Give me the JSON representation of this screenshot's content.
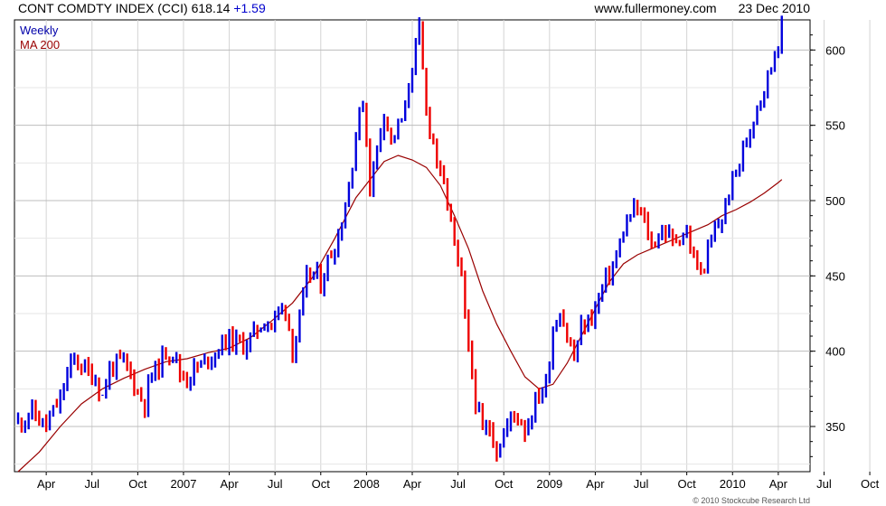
{
  "header": {
    "index_title": "CONT COMDTY INDEX (CCI)",
    "last_value": "618.14",
    "change": "+1.59",
    "website": "www.fullermoney.com",
    "date": "23 Dec 2010"
  },
  "footer": {
    "copyright": "© 2010 Stockcube Research Ltd"
  },
  "colors": {
    "up": "#0000dd",
    "down": "#ee0000",
    "ma": "#990000",
    "grid": "#d4d4d4"
  },
  "chart_data": {
    "type": "line",
    "title": "CONT COMDTY INDEX (CCI)",
    "legend": [
      {
        "name": "Weekly",
        "color": "#0000aa"
      },
      {
        "name": "MA 200",
        "color": "#990000"
      }
    ],
    "legend_position": "top-left",
    "grid": true,
    "ylim": [
      320,
      620
    ],
    "y_ticks": [
      350,
      400,
      450,
      500,
      550,
      600
    ],
    "y_axis_side": "right",
    "x_tick_labels": [
      "Apr",
      "Jul",
      "Oct",
      "2007",
      "Apr",
      "Jul",
      "Oct",
      "2008",
      "Apr",
      "Jul",
      "Oct",
      "2009",
      "Apr",
      "Jul",
      "Oct",
      "2010",
      "Apr",
      "Jul",
      "Oct"
    ],
    "weekly_close": [
      [
        0,
        353
      ],
      [
        2,
        356
      ],
      [
        4,
        360
      ],
      [
        6,
        354
      ],
      [
        8,
        350
      ],
      [
        10,
        360
      ],
      [
        12,
        368
      ],
      [
        14,
        385
      ],
      [
        16,
        395
      ],
      [
        18,
        390
      ],
      [
        20,
        386
      ],
      [
        22,
        382
      ],
      [
        24,
        370
      ],
      [
        26,
        388
      ],
      [
        28,
        392
      ],
      [
        30,
        392
      ],
      [
        32,
        385
      ],
      [
        34,
        372
      ],
      [
        36,
        366
      ],
      [
        38,
        385
      ],
      [
        40,
        390
      ],
      [
        42,
        400
      ],
      [
        44,
        400
      ],
      [
        46,
        385
      ],
      [
        48,
        382
      ],
      [
        50,
        388
      ],
      [
        52,
        390
      ],
      [
        54,
        396
      ],
      [
        56,
        399
      ],
      [
        58,
        405
      ],
      [
        60,
        408
      ],
      [
        62,
        406
      ],
      [
        64,
        404
      ],
      [
        66,
        408
      ],
      [
        68,
        415
      ],
      [
        70,
        420
      ],
      [
        72,
        418
      ],
      [
        74,
        426
      ],
      [
        76,
        430
      ],
      [
        78,
        400
      ],
      [
        80,
        420
      ],
      [
        82,
        448
      ],
      [
        84,
        452
      ],
      [
        86,
        445
      ],
      [
        88,
        460
      ],
      [
        90,
        470
      ],
      [
        92,
        486
      ],
      [
        94,
        510
      ],
      [
        96,
        545
      ],
      [
        98,
        567
      ],
      [
        100,
        510
      ],
      [
        102,
        535
      ],
      [
        104,
        560
      ],
      [
        106,
        540
      ],
      [
        108,
        548
      ],
      [
        110,
        560
      ],
      [
        112,
        592
      ],
      [
        114,
        612
      ],
      [
        116,
        558
      ],
      [
        118,
        540
      ],
      [
        120,
        515
      ],
      [
        122,
        500
      ],
      [
        124,
        470
      ],
      [
        126,
        445
      ],
      [
        128,
        400
      ],
      [
        130,
        368
      ],
      [
        132,
        345
      ],
      [
        134,
        350
      ],
      [
        136,
        335
      ],
      [
        138,
        345
      ],
      [
        140,
        356
      ],
      [
        142,
        358
      ],
      [
        144,
        348
      ],
      [
        146,
        360
      ],
      [
        148,
        372
      ],
      [
        150,
        378
      ],
      [
        152,
        415
      ],
      [
        154,
        428
      ],
      [
        156,
        410
      ],
      [
        158,
        395
      ],
      [
        160,
        415
      ],
      [
        162,
        420
      ],
      [
        164,
        428
      ],
      [
        166,
        442
      ],
      [
        168,
        452
      ],
      [
        170,
        462
      ],
      [
        172,
        480
      ],
      [
        174,
        490
      ],
      [
        176,
        495
      ],
      [
        178,
        485
      ],
      [
        180,
        470
      ],
      [
        182,
        478
      ],
      [
        184,
        480
      ],
      [
        186,
        472
      ],
      [
        188,
        478
      ],
      [
        190,
        478
      ],
      [
        192,
        460
      ],
      [
        194,
        452
      ],
      [
        196,
        465
      ],
      [
        198,
        480
      ],
      [
        200,
        488
      ],
      [
        202,
        505
      ],
      [
        204,
        520
      ],
      [
        206,
        532
      ],
      [
        208,
        548
      ],
      [
        210,
        565
      ],
      [
        212,
        575
      ],
      [
        214,
        590
      ],
      [
        216,
        608
      ],
      [
        217,
        618
      ]
    ],
    "ma200": [
      [
        0,
        320
      ],
      [
        6,
        333
      ],
      [
        12,
        350
      ],
      [
        18,
        365
      ],
      [
        24,
        375
      ],
      [
        30,
        382
      ],
      [
        36,
        388
      ],
      [
        42,
        393
      ],
      [
        48,
        395
      ],
      [
        54,
        399
      ],
      [
        60,
        402
      ],
      [
        66,
        409
      ],
      [
        72,
        420
      ],
      [
        78,
        432
      ],
      [
        84,
        450
      ],
      [
        90,
        475
      ],
      [
        96,
        502
      ],
      [
        100,
        514
      ],
      [
        104,
        526
      ],
      [
        108,
        530
      ],
      [
        112,
        527
      ],
      [
        116,
        522
      ],
      [
        120,
        510
      ],
      [
        124,
        490
      ],
      [
        128,
        468
      ],
      [
        132,
        440
      ],
      [
        136,
        418
      ],
      [
        140,
        400
      ],
      [
        144,
        383
      ],
      [
        148,
        375
      ],
      [
        152,
        378
      ],
      [
        156,
        392
      ],
      [
        160,
        410
      ],
      [
        164,
        428
      ],
      [
        168,
        446
      ],
      [
        172,
        458
      ],
      [
        176,
        464
      ],
      [
        180,
        468
      ],
      [
        184,
        472
      ],
      [
        188,
        476
      ],
      [
        192,
        480
      ],
      [
        196,
        484
      ],
      [
        200,
        490
      ],
      [
        204,
        494
      ],
      [
        208,
        499
      ],
      [
        212,
        505
      ],
      [
        216,
        512
      ],
      [
        217,
        514
      ]
    ]
  }
}
